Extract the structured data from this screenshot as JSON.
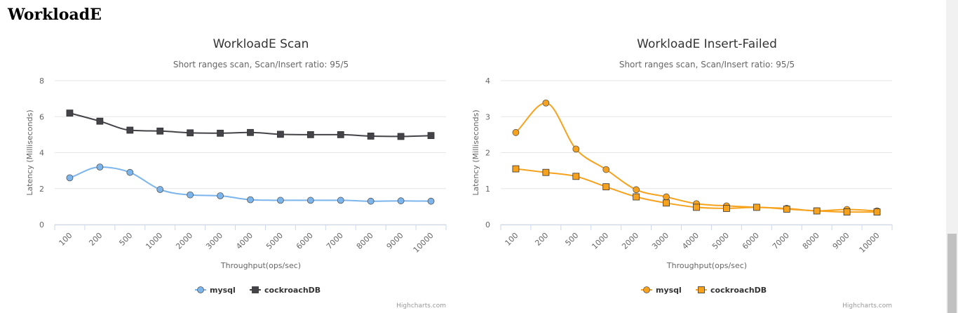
{
  "page": {
    "title": "WorkloadE"
  },
  "credits": "Highcharts.com",
  "chart_data": [
    {
      "type": "line",
      "title": "WorkloadE Scan",
      "subtitle": "Short ranges scan, Scan/Insert ratio: 95/5",
      "xlabel": "Throughput(ops/sec)",
      "ylabel": "Latency (Milliseconds)",
      "ylim": [
        0,
        8
      ],
      "yticks": [
        0,
        2,
        4,
        6,
        8
      ],
      "grid": true,
      "legend_position": "bottom-center",
      "categories": [
        "100",
        "200",
        "500",
        "1000",
        "2000",
        "3000",
        "4000",
        "5000",
        "6000",
        "7000",
        "8000",
        "9000",
        "10000"
      ],
      "series": [
        {
          "name": "mysql",
          "marker": "circle",
          "color": "#7cb5ec",
          "values": [
            2.6,
            3.2,
            2.9,
            1.95,
            1.65,
            1.6,
            1.38,
            1.35,
            1.35,
            1.35,
            1.3,
            1.32,
            1.3
          ]
        },
        {
          "name": "cockroachDB",
          "marker": "square",
          "color": "#434348",
          "values": [
            6.2,
            5.75,
            5.25,
            5.2,
            5.1,
            5.08,
            5.12,
            5.02,
            5.0,
            5.0,
            4.92,
            4.9,
            4.95
          ]
        }
      ]
    },
    {
      "type": "line",
      "title": "WorkloadE Insert-Failed",
      "subtitle": "Short ranges scan, Scan/Insert ratio: 95/5",
      "xlabel": "Throughput(ops/sec)",
      "ylabel": "Latency (Milliseconds)",
      "ylim": [
        0,
        4
      ],
      "yticks": [
        0,
        1,
        2,
        3,
        4
      ],
      "grid": true,
      "legend_position": "bottom-center",
      "categories": [
        "100",
        "200",
        "500",
        "1000",
        "2000",
        "3000",
        "4000",
        "5000",
        "6000",
        "7000",
        "8000",
        "9000",
        "10000"
      ],
      "series": [
        {
          "name": "mysql",
          "marker": "circle",
          "color": "#f7a21c",
          "values": [
            2.56,
            3.38,
            2.1,
            1.53,
            0.97,
            0.77,
            0.58,
            0.52,
            0.48,
            0.45,
            0.38,
            0.42,
            0.38
          ]
        },
        {
          "name": "cockroachDB",
          "marker": "square",
          "color": "#f7a21c",
          "values": [
            1.55,
            1.45,
            1.34,
            1.05,
            0.77,
            0.6,
            0.48,
            0.45,
            0.48,
            0.43,
            0.38,
            0.35,
            0.35
          ]
        }
      ]
    }
  ]
}
